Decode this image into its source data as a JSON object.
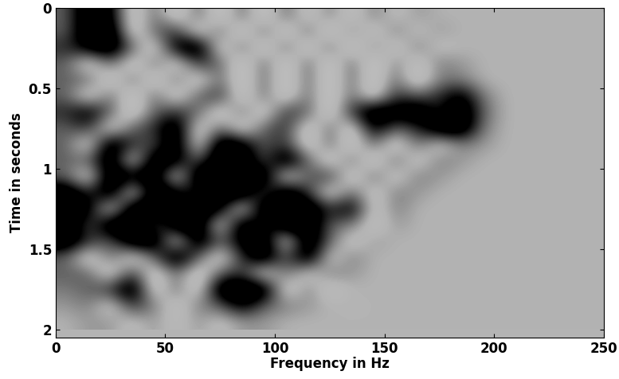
{
  "chart_data": {
    "type": "heatmap",
    "xlabel": "Frequency in Hz",
    "ylabel": "Time in seconds",
    "xlim": [
      0,
      250
    ],
    "ylim": [
      2.05,
      0
    ],
    "xticks": [
      0,
      50,
      100,
      150,
      200,
      250
    ],
    "yticks": [
      0,
      0.5,
      1,
      1.5,
      2
    ],
    "x": [
      5,
      15,
      25,
      35,
      45,
      55,
      65,
      75,
      85,
      95,
      105,
      115,
      125,
      135,
      145,
      155,
      165,
      175,
      185,
      195,
      205,
      215,
      225,
      235,
      245
    ],
    "y": [
      0.05,
      0.15,
      0.25,
      0.35,
      0.45,
      0.55,
      0.65,
      0.75,
      0.85,
      0.95,
      1.05,
      1.15,
      1.25,
      1.35,
      1.45,
      1.55,
      1.65,
      1.75,
      1.85,
      1.95
    ],
    "cells": [
      [
        0.3,
        1,
        0.8,
        -0.3,
        0.3,
        -0.3,
        0.3,
        -0.3,
        0.3,
        -0.3,
        0.3,
        -0.2,
        0.2,
        -0.2,
        0.2,
        -0.1,
        0.1,
        0,
        0,
        0,
        0,
        0,
        0,
        0,
        0
      ],
      [
        0.3,
        1,
        1,
        -0.3,
        0.3,
        0.5,
        -0.3,
        0.3,
        -0.3,
        0.3,
        -0.3,
        0.3,
        -0.3,
        0.2,
        -0.2,
        0.2,
        -0.1,
        0.1,
        0,
        0,
        0,
        0,
        0,
        0,
        0
      ],
      [
        0.5,
        0.8,
        1,
        0.3,
        -0.3,
        0.8,
        1,
        -0.3,
        0.3,
        -0.3,
        0.3,
        -0.3,
        0.3,
        -0.3,
        0.2,
        -0.2,
        0.2,
        -0.1,
        0,
        0,
        0,
        0,
        0,
        0,
        0
      ],
      [
        0.3,
        -0.3,
        0.3,
        -0.3,
        0.3,
        -0.3,
        0.5,
        0.3,
        -0.3,
        0.3,
        -0.3,
        0.3,
        -0.3,
        0.3,
        -0.3,
        0.2,
        -0.2,
        0.2,
        0.1,
        0,
        0,
        0,
        0,
        0,
        0
      ],
      [
        0.3,
        0.3,
        -0.3,
        0.3,
        -0.3,
        0.3,
        -0.3,
        0.3,
        -0.3,
        0.3,
        -0.3,
        0.3,
        -0.3,
        0.3,
        -0.3,
        0.3,
        -0.3,
        0.2,
        0.2,
        0,
        0,
        0,
        0,
        0,
        0
      ],
      [
        0.3,
        -0.3,
        0.3,
        -0.3,
        0.3,
        -0.3,
        0.3,
        0.5,
        -0.3,
        0.3,
        -0.3,
        0.3,
        -0.3,
        0.3,
        -0.3,
        0.5,
        0.3,
        0.5,
        0.8,
        0.2,
        0,
        0,
        0,
        0,
        0
      ],
      [
        0.5,
        0.8,
        0.3,
        -0.3,
        0.3,
        0.5,
        0.3,
        -0.3,
        0.3,
        -0.3,
        0.5,
        0.3,
        -0.3,
        0.5,
        1,
        0.8,
        1,
        0.5,
        1,
        0.3,
        0,
        0,
        0,
        0,
        0
      ],
      [
        0.3,
        0.5,
        -0.3,
        0.3,
        0.5,
        1,
        -0.3,
        0.3,
        -0.3,
        0.3,
        0.5,
        -0.3,
        0.3,
        -0.3,
        0.8,
        0.3,
        0.5,
        1,
        1,
        0.2,
        0,
        0,
        0,
        0,
        0
      ],
      [
        0.3,
        -0.3,
        1,
        0.5,
        0.3,
        1,
        -0.3,
        1,
        0.8,
        0.3,
        0.5,
        -0.3,
        0.3,
        -0.3,
        0.3,
        -0.3,
        0.3,
        -0.2,
        0.2,
        0.1,
        0,
        0,
        0,
        0,
        0
      ],
      [
        0.3,
        0.3,
        1,
        -0.3,
        1,
        0.8,
        0.3,
        1,
        1,
        0.3,
        1,
        0.3,
        -0.3,
        0.3,
        -0.3,
        0.3,
        -0.2,
        0.2,
        0.1,
        0,
        0,
        0,
        0,
        0,
        0
      ],
      [
        0.3,
        -0.3,
        1,
        0.8,
        1,
        -0.3,
        1,
        1,
        0.8,
        1,
        -0.3,
        0.3,
        0.5,
        -0.3,
        0.3,
        -0.2,
        0.2,
        0.1,
        0,
        0,
        0,
        0,
        0,
        0,
        0
      ],
      [
        1,
        0.5,
        1,
        -0.3,
        1,
        0.8,
        0.5,
        1,
        1,
        0.3,
        1,
        0.5,
        -0.3,
        0.3,
        -0.2,
        0.2,
        0.1,
        0,
        0,
        0,
        0,
        0,
        0,
        0,
        0
      ],
      [
        1,
        0.8,
        -0.3,
        1,
        1,
        0.5,
        1,
        0.8,
        -0.3,
        1,
        0.8,
        1,
        0.5,
        0.8,
        -0.2,
        0.2,
        0,
        0,
        0,
        0,
        0,
        0,
        0,
        0,
        0
      ],
      [
        1,
        0.3,
        1,
        1,
        0.3,
        1,
        1,
        -0.3,
        1,
        0.5,
        1,
        1,
        0.3,
        0.2,
        -0.2,
        0.1,
        0,
        0,
        0,
        0,
        0,
        0,
        0,
        0,
        0
      ],
      [
        1,
        0.5,
        0.3,
        1,
        1,
        -0.3,
        1,
        0.3,
        0.8,
        1,
        -0.3,
        1,
        0.3,
        -0.2,
        0.1,
        0,
        0,
        0,
        0,
        0,
        0,
        0,
        0,
        0,
        0
      ],
      [
        0.3,
        -0.3,
        0.3,
        -0.3,
        0.3,
        1,
        0.3,
        -0.3,
        0.5,
        1,
        0.3,
        1,
        -0.2,
        0.2,
        0,
        0,
        0,
        0,
        0,
        0,
        0,
        0,
        0,
        0,
        0
      ],
      [
        0.3,
        0.3,
        -0.3,
        0.5,
        -0.3,
        0.3,
        -0.3,
        0.3,
        0.5,
        -0.3,
        0.3,
        -0.2,
        0.2,
        0.1,
        0,
        0,
        0,
        0,
        0,
        0,
        0,
        0,
        0,
        0,
        0
      ],
      [
        0.2,
        0.3,
        0.5,
        1,
        -0.3,
        0.3,
        -0.3,
        1,
        1,
        1,
        -0.3,
        0.2,
        -0.2,
        0,
        0,
        0,
        0,
        0,
        0,
        0,
        0,
        0,
        0,
        0,
        0
      ],
      [
        0.1,
        0.2,
        -0.2,
        0.5,
        0.2,
        -0.2,
        0.2,
        0.3,
        0.8,
        0.3,
        0.2,
        0.1,
        0,
        0,
        0,
        0,
        0,
        0,
        0,
        0,
        0,
        0,
        0,
        0,
        0
      ],
      [
        0,
        0.1,
        0.1,
        -0.1,
        0.1,
        -0.1,
        0.1,
        -0.1,
        0.1,
        0.1,
        0,
        0,
        0,
        0,
        0,
        0,
        0,
        0,
        0,
        0,
        0,
        0,
        0,
        0,
        0
      ]
    ]
  }
}
